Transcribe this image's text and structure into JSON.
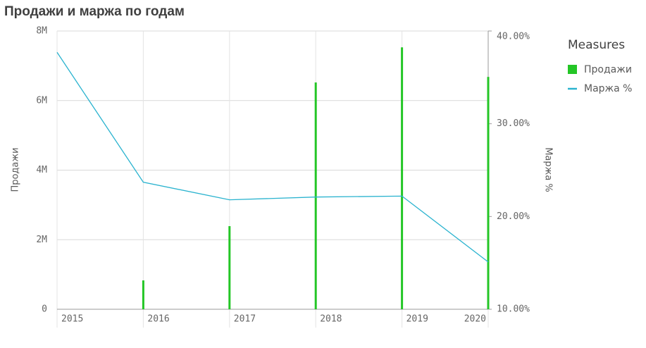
{
  "chart_data": {
    "type": "combo",
    "title": "Продажи и маржа по годам",
    "x": [
      2015,
      2016,
      2017,
      2018,
      2019,
      2020
    ],
    "xlim": [
      2015,
      2020
    ],
    "xticks": [
      2015,
      2016,
      2017,
      2018,
      2019,
      2020
    ],
    "ylabel": "Продажи",
    "y2label": "Маржа %",
    "ylim": [
      0,
      8000000
    ],
    "yticks": [
      0,
      {
        "value": 2000000,
        "label": "2M"
      },
      {
        "value": 4000000,
        "label": "4M"
      },
      {
        "value": 6000000,
        "label": "6M"
      },
      {
        "value": 8000000,
        "label": "8M"
      }
    ],
    "y2lim": [
      10,
      40
    ],
    "y2ticks": [
      {
        "value": 10,
        "label": "10.00%"
      },
      {
        "value": 20,
        "label": "20.00%"
      },
      {
        "value": 30,
        "label": "30.00%"
      },
      {
        "value": 40,
        "label": "40.00%"
      }
    ],
    "legend_title": "Measures",
    "legend": "right",
    "grid": true,
    "series": [
      {
        "name": "Продажи",
        "type": "bar",
        "color": "#24c626",
        "values": [
          null,
          830000,
          2390000,
          6520000,
          7530000,
          6680000
        ]
      },
      {
        "name": "Маржа %",
        "type": "line",
        "axis": "y2",
        "color": "#2ab3cf",
        "values": [
          37.7,
          23.7,
          21.8,
          22.1,
          22.2,
          15.1
        ]
      }
    ]
  }
}
